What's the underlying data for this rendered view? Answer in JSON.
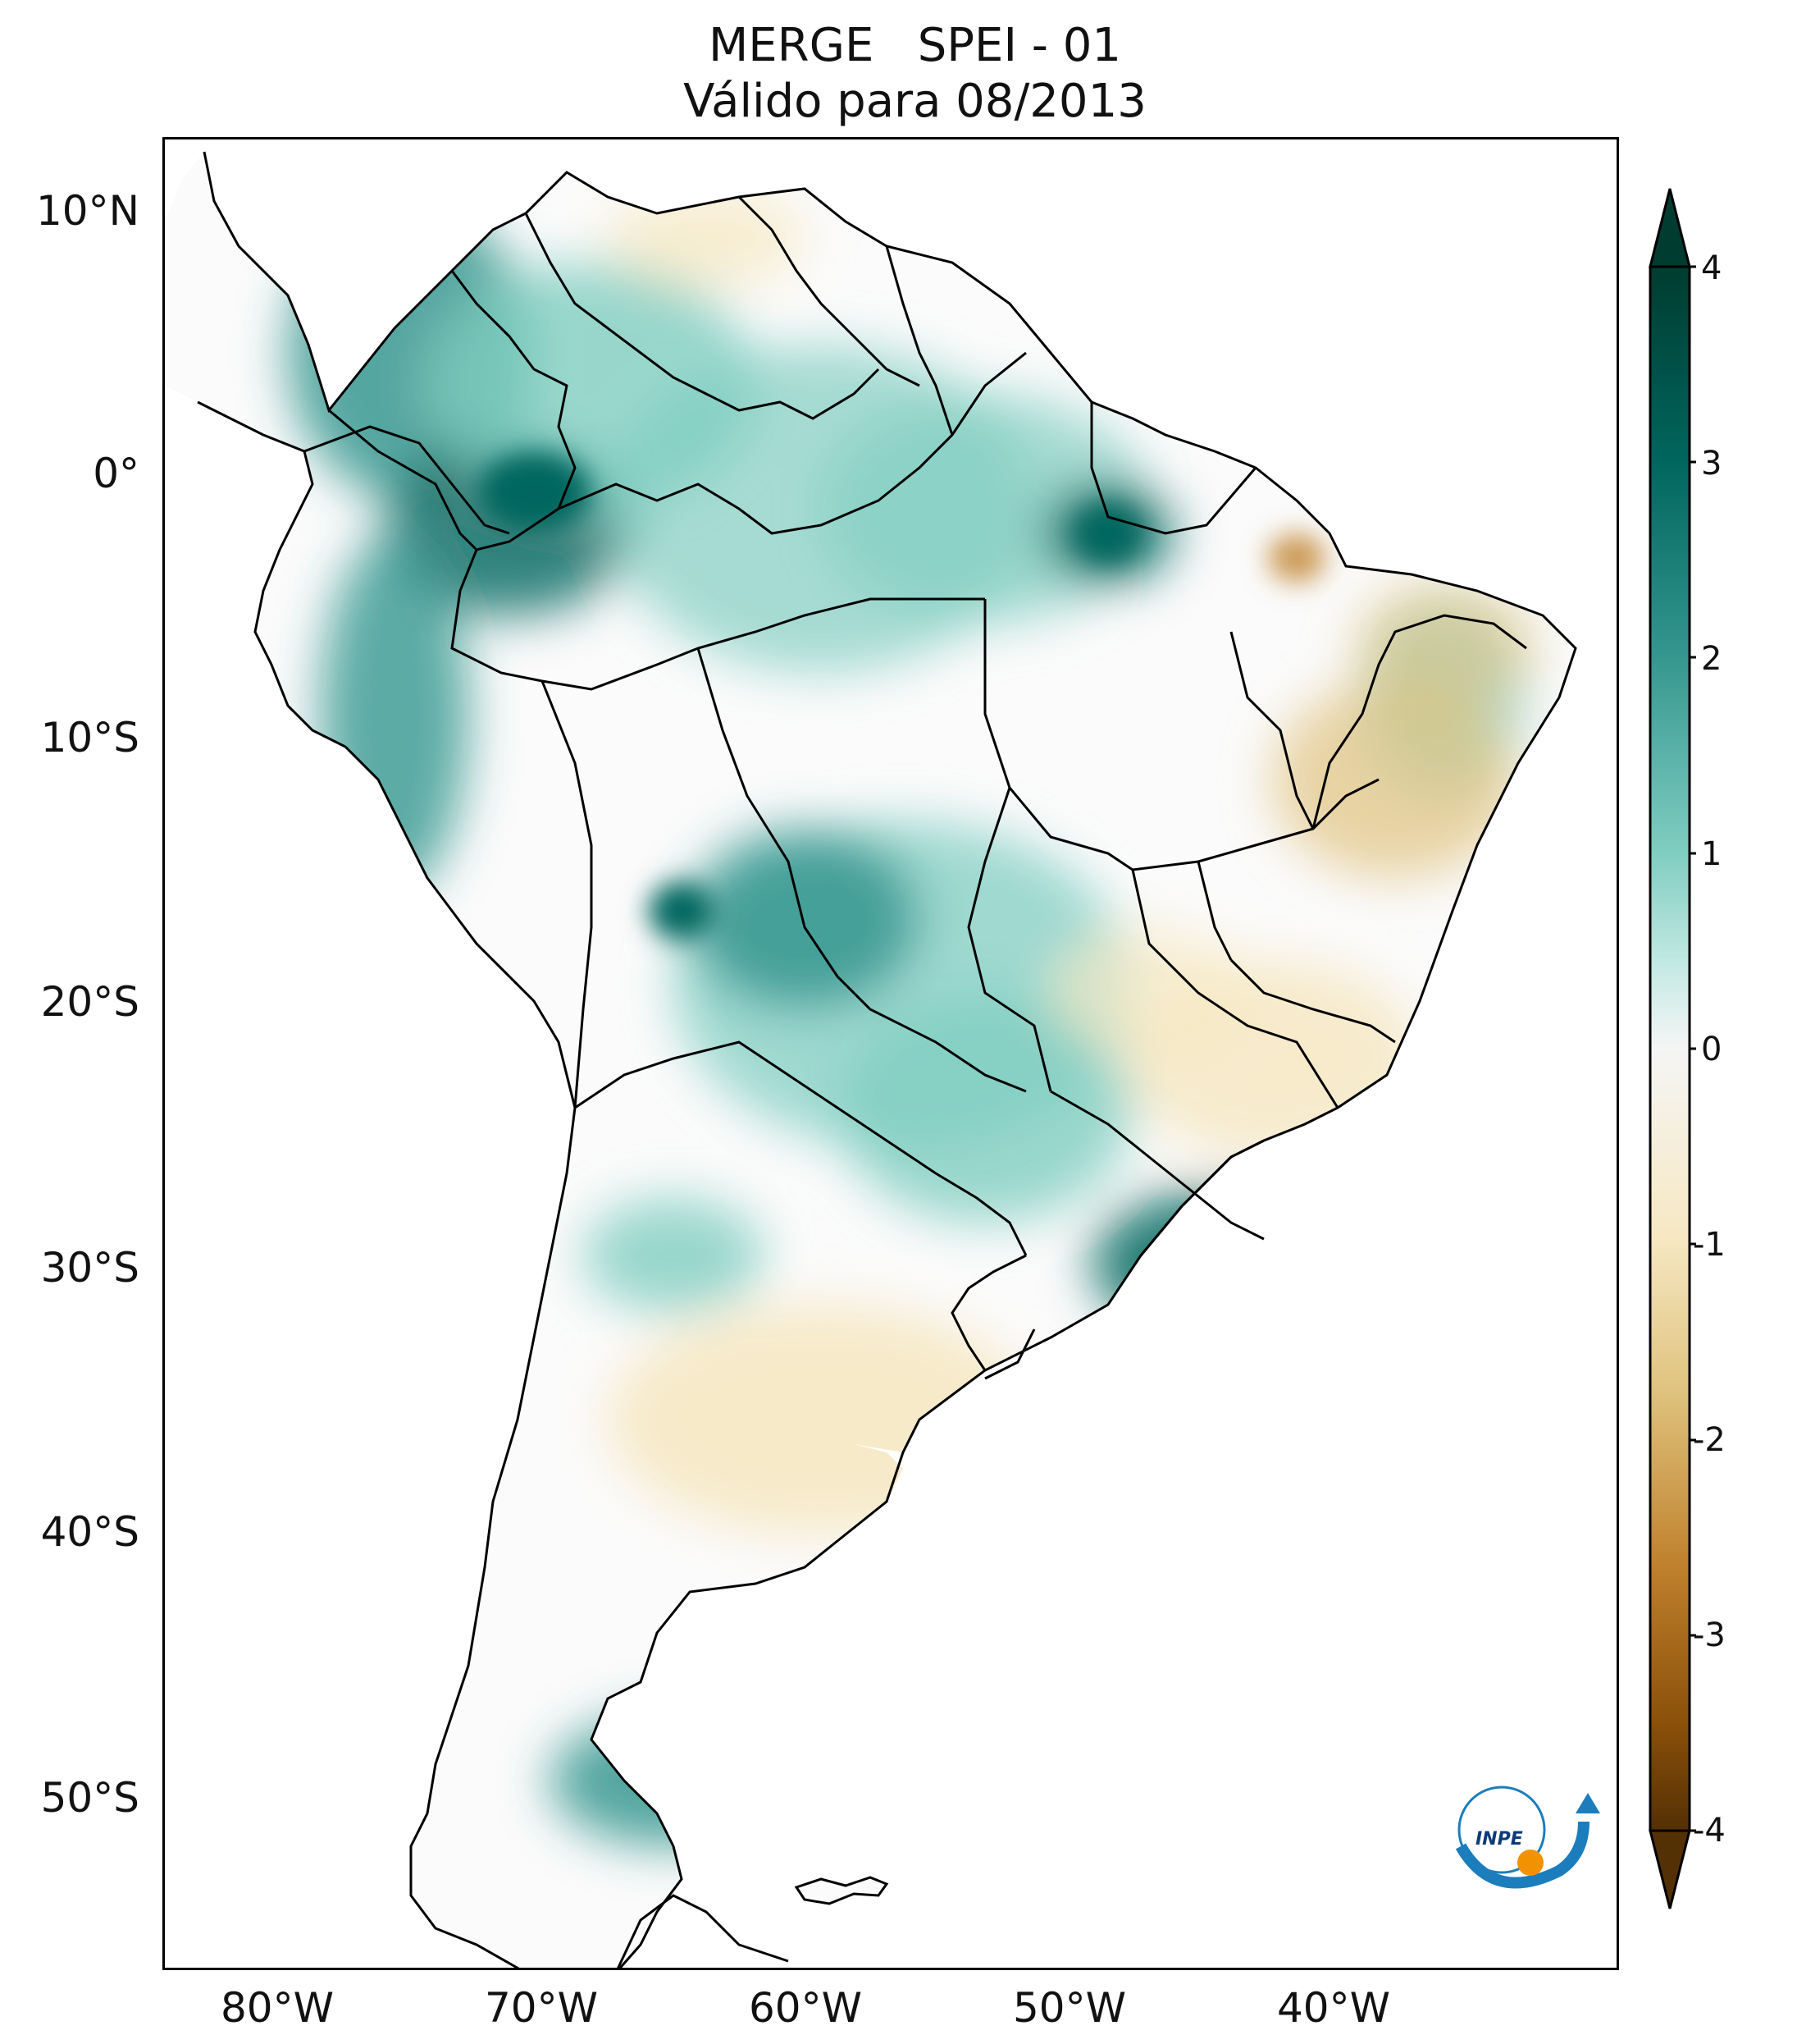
{
  "title": {
    "line1": "MERGE   SPEI - 01",
    "line2": "Válido para 08/2013"
  },
  "map": {
    "lat_ticks": [
      "10°N",
      "0°",
      "10°S",
      "20°S",
      "30°S",
      "40°S",
      "50°S"
    ],
    "lon_ticks": [
      "80°W",
      "70°W",
      "60°W",
      "50°W",
      "40°W"
    ],
    "land_color": "#fbfbfb"
  },
  "colorbar": {
    "ticks": [
      "4",
      "3",
      "2",
      "1",
      "0",
      "-1",
      "-2",
      "-3",
      "-4"
    ],
    "colors": [
      "#003c30",
      "#01665e",
      "#35978f",
      "#80cdc1",
      "#c7eae5",
      "#f5f5f5",
      "#f6e8c3",
      "#dfc27d",
      "#bf812d",
      "#8c510a",
      "#543005"
    ]
  },
  "logo": {
    "text": "INPE",
    "blue": "#1c7dbd",
    "orange": "#f39200"
  }
}
